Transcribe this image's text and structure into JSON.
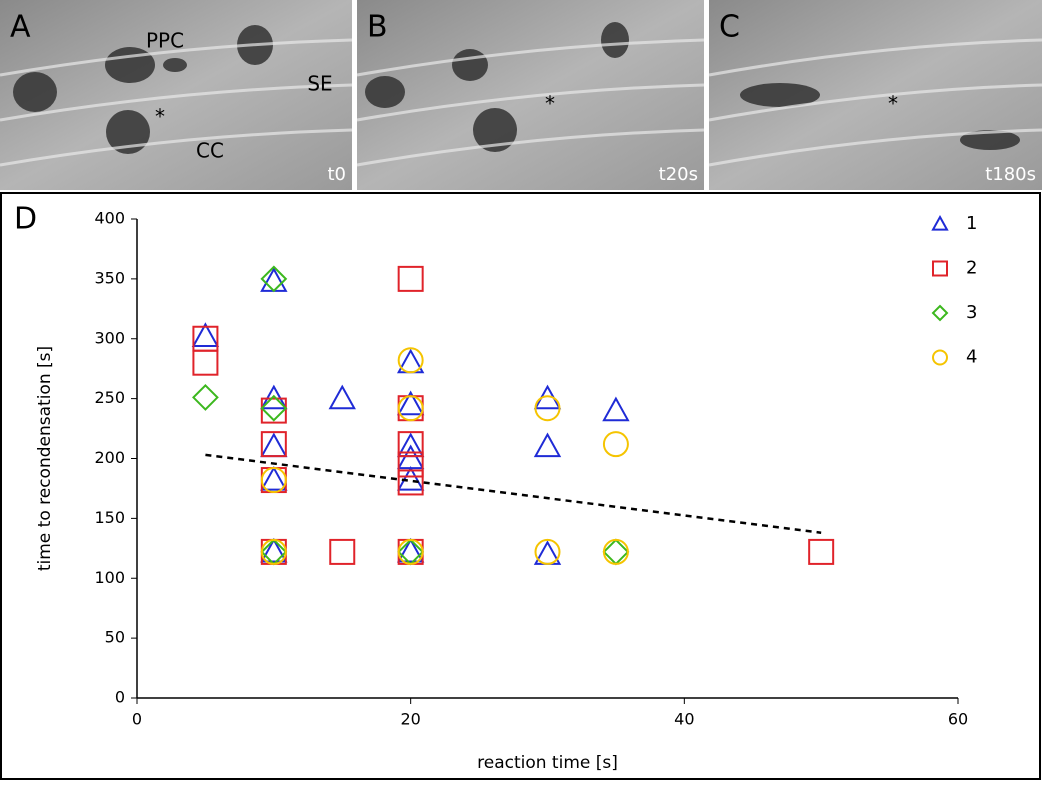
{
  "panels": [
    {
      "label": "A",
      "annotations": [
        "PPC",
        "SE",
        "CC",
        "*"
      ],
      "time": "t0"
    },
    {
      "label": "B",
      "annotations": [
        "*"
      ],
      "time": "t20s"
    },
    {
      "label": "C",
      "annotations": [
        "*"
      ],
      "time": "t180s"
    }
  ],
  "chart_data": {
    "type": "scatter",
    "panel_label": "D",
    "x_label": "reaction time [s]",
    "y_label": "time to recondensation [s]",
    "xlim": [
      0,
      60
    ],
    "xticks": [
      0,
      20,
      40,
      60
    ],
    "ylim": [
      0,
      400
    ],
    "yticks": [
      0,
      50,
      100,
      150,
      200,
      250,
      300,
      350,
      400
    ],
    "series": [
      {
        "name": "1",
        "color": "#1f2bd6",
        "marker": "triangle",
        "x": [
          5,
          10,
          10,
          10,
          10,
          10,
          15,
          20,
          20,
          20,
          20,
          20,
          20,
          30,
          30,
          30,
          35
        ],
        "values": [
          302,
          348,
          250,
          210,
          182,
          122,
          250,
          280,
          245,
          210,
          200,
          182,
          122,
          250,
          210,
          120,
          240
        ]
      },
      {
        "name": "2",
        "color": "#e0232a",
        "marker": "square",
        "x": [
          5,
          5,
          10,
          10,
          10,
          10,
          15,
          20,
          20,
          20,
          20,
          20,
          20,
          50
        ],
        "values": [
          300,
          280,
          240,
          212,
          182,
          122,
          122,
          350,
          242,
          212,
          195,
          180,
          122,
          122
        ]
      },
      {
        "name": "3",
        "color": "#3cb81e",
        "marker": "diamond",
        "x": [
          5,
          10,
          10,
          10,
          20,
          35
        ],
        "values": [
          251,
          350,
          242,
          122,
          122,
          122
        ]
      },
      {
        "name": "4",
        "color": "#f5c400",
        "marker": "circle",
        "x": [
          10,
          10,
          20,
          20,
          20,
          30,
          30,
          35,
          35
        ],
        "values": [
          182,
          122,
          282,
          242,
          122,
          242,
          122,
          212,
          122
        ]
      }
    ],
    "trendline": {
      "x": [
        5,
        50
      ],
      "values": [
        203,
        138
      ]
    }
  }
}
